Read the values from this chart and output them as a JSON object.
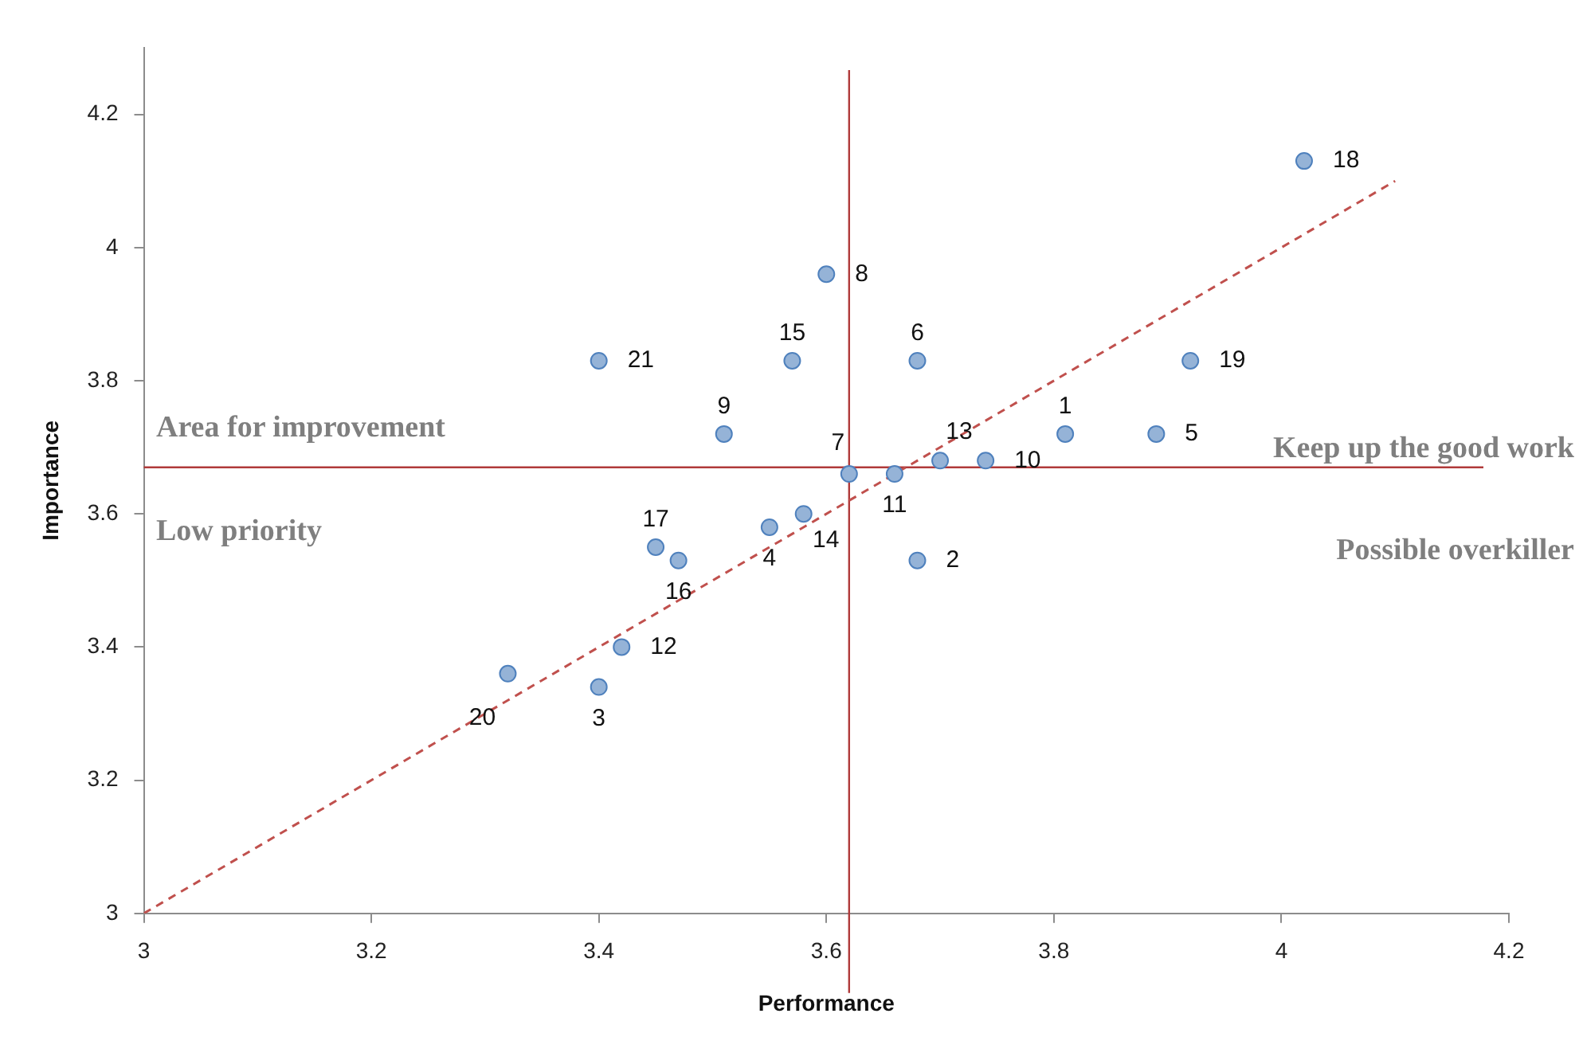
{
  "chart_data": {
    "type": "scatter",
    "xlabel": "Performance",
    "ylabel": "Importance",
    "xlim": [
      3,
      4.2
    ],
    "xticks": [
      3,
      3.2,
      3.4,
      3.6,
      3.8,
      4,
      4.2
    ],
    "ylim": [
      3,
      4.3
    ],
    "yticks": [
      3,
      3.2,
      3.4,
      3.6,
      3.8,
      4,
      4.2
    ],
    "grid": false,
    "legend": false,
    "marker": "circle",
    "series": [
      {
        "color": "#95b3d7",
        "x": [
          3.81,
          3.68,
          3.4,
          3.55,
          3.89,
          3.68,
          3.62,
          3.6,
          3.51,
          3.74,
          3.66,
          3.42,
          3.7,
          3.58,
          3.57,
          3.47,
          3.45,
          4.02,
          3.92,
          3.32,
          3.4
        ],
        "values": [
          3.72,
          3.53,
          3.34,
          3.58,
          3.72,
          3.83,
          3.66,
          3.96,
          3.72,
          3.68,
          3.66,
          3.4,
          3.68,
          3.6,
          3.83,
          3.53,
          3.55,
          4.13,
          3.83,
          3.36,
          3.83
        ]
      },
      {
        "type": "line",
        "color": "#c0504d",
        "x": [
          3,
          4.1
        ],
        "values": [
          3,
          4.1
        ],
        "line_style": "dashed",
        "marker": "none"
      }
    ],
    "ref_lines": [
      {
        "axis": "x",
        "value": 3.62,
        "color": "#b03a3a"
      },
      {
        "axis": "y",
        "value": 3.67,
        "color": "#b03a3a"
      }
    ],
    "annotations": [
      {
        "text": "1",
        "x": 3.81,
        "y": 3.72
      },
      {
        "text": "2",
        "x": 3.68,
        "y": 3.53
      },
      {
        "text": "3",
        "x": 3.4,
        "y": 3.34
      },
      {
        "text": "4",
        "x": 3.55,
        "y": 3.58
      },
      {
        "text": "5",
        "x": 3.89,
        "y": 3.72
      },
      {
        "text": "6",
        "x": 3.68,
        "y": 3.83
      },
      {
        "text": "7",
        "x": 3.62,
        "y": 3.66
      },
      {
        "text": "8",
        "x": 3.6,
        "y": 3.96
      },
      {
        "text": "9",
        "x": 3.51,
        "y": 3.72
      },
      {
        "text": "10",
        "x": 3.74,
        "y": 3.68
      },
      {
        "text": "11",
        "x": 3.66,
        "y": 3.66
      },
      {
        "text": "12",
        "x": 3.42,
        "y": 3.4
      },
      {
        "text": "13",
        "x": 3.7,
        "y": 3.68
      },
      {
        "text": "14",
        "x": 3.58,
        "y": 3.6
      },
      {
        "text": "15",
        "x": 3.57,
        "y": 3.83
      },
      {
        "text": "16",
        "x": 3.47,
        "y": 3.53
      },
      {
        "text": "17",
        "x": 3.45,
        "y": 3.55
      },
      {
        "text": "18",
        "x": 4.02,
        "y": 4.13
      },
      {
        "text": "19",
        "x": 3.92,
        "y": 3.83
      },
      {
        "text": "20",
        "x": 3.32,
        "y": 3.36
      },
      {
        "text": "21",
        "x": 3.4,
        "y": 3.83
      },
      "Area for improvement",
      "Low priority",
      "Keep up the good work",
      "Possible overkiller"
    ]
  }
}
